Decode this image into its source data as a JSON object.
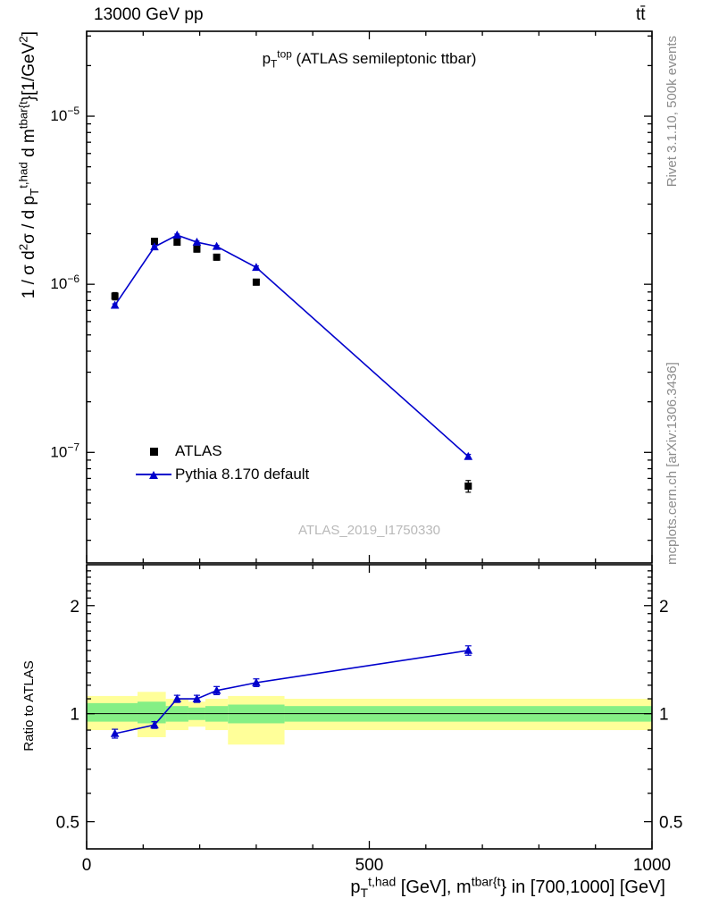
{
  "colors": {
    "line_blue": "#0000cc",
    "marker_black": "#000000",
    "band_yellow": "#ffff99",
    "band_green": "#85ef85",
    "gray_note": "#8c8c8c",
    "watermark_gray": "#b9b9b9"
  },
  "labels": {
    "header_left": "13000 GeV pp",
    "header_right": "tt̄",
    "plot_title": [
      [
        "n",
        "p"
      ],
      [
        "d",
        "T"
      ],
      [
        "u",
        "top"
      ],
      [
        "n",
        " (ATLAS semileptonic ttbar)"
      ]
    ],
    "y_title": [
      [
        "n",
        "1 / σ d"
      ],
      [
        "u",
        "2"
      ],
      [
        "n",
        "σ / d p"
      ],
      [
        "d",
        "T"
      ],
      [
        "u",
        "t,had"
      ],
      [
        "n",
        " d m"
      ],
      [
        "u",
        "tbar{t"
      ],
      [
        "n",
        "}[1/GeV"
      ],
      [
        "u",
        "2"
      ],
      [
        "n",
        "]"
      ]
    ],
    "ratio_y_title": "Ratio to ATLAS",
    "x_title": [
      [
        "n",
        "p"
      ],
      [
        "d",
        "T"
      ],
      [
        "u",
        "t,had"
      ],
      [
        "n",
        " [GeV], m"
      ],
      [
        "u",
        "tbar{t"
      ],
      [
        "n",
        "} in [700,1000] [GeV]"
      ]
    ],
    "watermark": "ATLAS_2019_I1750330",
    "rivet_note": "Rivet 3.1.10,  500k events",
    "mcplots_note": "mcplots.cern.ch [arXiv:1306.3436]"
  },
  "chart_data": {
    "type": "line",
    "title": "p_T^{top} (ATLAS semileptonic ttbar)",
    "xlabel": "p_T^{t,had} [GeV], m^{tbar{t}} in [700,1000] [GeV]",
    "ylabel": "1 / sigma d2sigma / d p_T^{t,had} d m^{tbar{t}} [1/GeV^2]",
    "ratio_ylabel": "Ratio to ATLAS",
    "x_log": false,
    "y_log": true,
    "ratio_y_log": true,
    "xlim": [
      0,
      1000
    ],
    "ylim": [
      2.2e-08,
      3.2e-05
    ],
    "ratio_ylim": [
      0.42,
      2.6
    ],
    "x_ticks": [
      0,
      500,
      1000
    ],
    "y_tick_exponents": [
      -5,
      -6,
      -7
    ],
    "ratio_ticks": [
      0.5,
      1,
      2
    ],
    "x": [
      50,
      120,
      160,
      195,
      230,
      300,
      675
    ],
    "series": [
      {
        "name": "ATLAS",
        "marker": "square",
        "color": "#000000",
        "line": false,
        "values": [
          8.5e-07,
          1.8e-06,
          1.78e-06,
          1.62e-06,
          1.45e-06,
          1.03e-06,
          6.3e-08
        ],
        "err_frac": [
          0.05,
          0.04,
          0.04,
          0.04,
          0.04,
          0.04,
          0.08
        ]
      },
      {
        "name": "Pythia 8.170 default",
        "marker": "triangle",
        "color": "#0000cc",
        "line": true,
        "values": [
          7.5e-07,
          1.67e-06,
          1.96e-06,
          1.78e-06,
          1.68e-06,
          1.26e-06,
          9.45e-08
        ],
        "err_frac": [
          0.02,
          0.015,
          0.015,
          0.015,
          0.015,
          0.02,
          0.03
        ]
      }
    ],
    "ratio": {
      "values": [
        0.88,
        0.93,
        1.1,
        1.1,
        1.16,
        1.22,
        1.5
      ],
      "err": [
        0.025,
        0.02,
        0.025,
        0.025,
        0.03,
        0.03,
        0.045
      ],
      "bands": {
        "edges": [
          0,
          90,
          140,
          180,
          210,
          250,
          350,
          1000
        ],
        "yellow_lo": [
          0.9,
          0.86,
          0.9,
          0.92,
          0.9,
          0.82,
          0.9
        ],
        "yellow_hi": [
          1.12,
          1.15,
          1.1,
          1.08,
          1.1,
          1.12,
          1.1
        ],
        "green_lo": [
          0.95,
          0.94,
          0.95,
          0.96,
          0.95,
          0.94,
          0.95
        ],
        "green_hi": [
          1.07,
          1.08,
          1.05,
          1.04,
          1.05,
          1.06,
          1.05
        ]
      }
    }
  }
}
